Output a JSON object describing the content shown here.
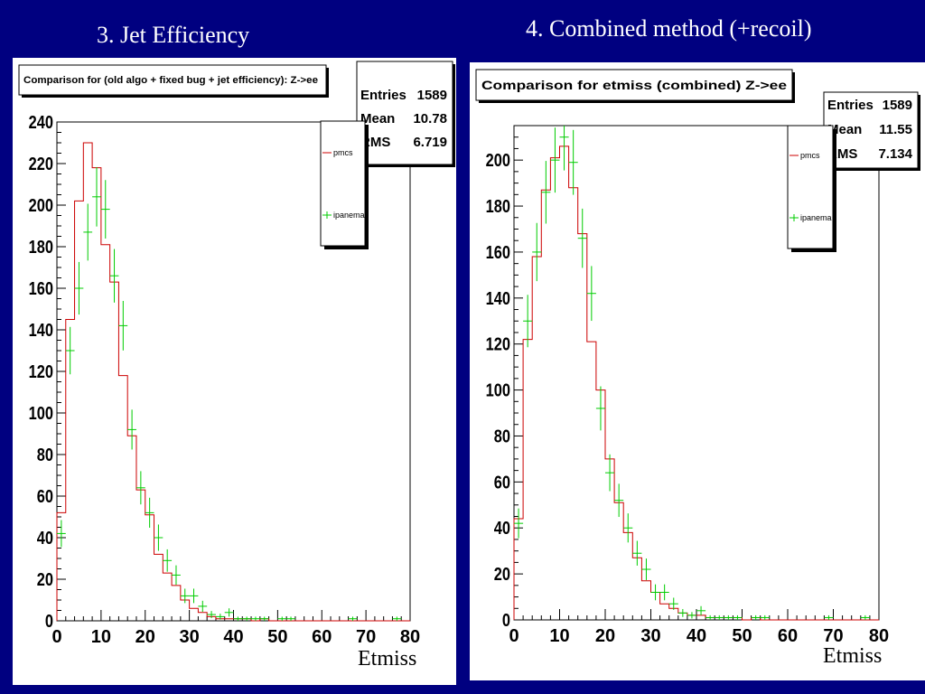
{
  "slide_titles": {
    "left": "3. Jet Efficiency",
    "right": "4. Combined method (+recoil)"
  },
  "colors": {
    "background": "#000080",
    "pmcs": "#cc0000",
    "ipanema": "#00cc00"
  },
  "chart_data": [
    {
      "type": "histogram",
      "title": "Comparison for (old algo + fixed bug + jet efficiency): Z->ee",
      "xlabel": "Etmiss",
      "ylabel": "",
      "xlim": [
        0,
        80
      ],
      "ylim": [
        0,
        240
      ],
      "xticks": [
        0,
        10,
        20,
        30,
        40,
        50,
        60,
        70,
        80
      ],
      "yticks": [
        0,
        20,
        40,
        60,
        80,
        100,
        120,
        140,
        160,
        180,
        200,
        220,
        240
      ],
      "bin_width": 2,
      "stats": {
        "entries_label": "Entries",
        "entries": "1589",
        "mean_label": "Mean",
        "mean": "10.78",
        "rms_label": "RMS",
        "rms": "6.719"
      },
      "legend": {
        "position": "top-right",
        "entries": [
          "pmcs",
          "ipanema"
        ]
      },
      "series": [
        {
          "name": "pmcs",
          "style": "step",
          "values": [
            52,
            145,
            202,
            230,
            218,
            181,
            163,
            118,
            89,
            63,
            51,
            32,
            23,
            17,
            10,
            6,
            4,
            2,
            1,
            1,
            1,
            1,
            0,
            1,
            0,
            0,
            0,
            0,
            0,
            0,
            0,
            0,
            0,
            0,
            0,
            0,
            0,
            0,
            0,
            0
          ]
        },
        {
          "name": "ipanema",
          "style": "errorbars",
          "values": [
            42,
            130,
            160,
            187,
            204,
            198,
            166,
            142,
            92,
            64,
            52,
            40,
            29,
            22,
            12,
            12,
            7,
            3,
            2,
            4,
            1,
            1,
            1,
            1,
            0,
            1,
            1,
            0,
            0,
            0,
            0,
            0,
            0,
            1,
            0,
            0,
            0,
            0,
            1,
            0
          ]
        }
      ]
    },
    {
      "type": "histogram",
      "title": "Comparison for etmiss (combined) Z->ee",
      "xlabel": "Etmiss",
      "ylabel": "",
      "xlim": [
        0,
        80
      ],
      "ylim": [
        0,
        215
      ],
      "xticks": [
        0,
        10,
        20,
        30,
        40,
        50,
        60,
        70,
        80
      ],
      "yticks": [
        0,
        20,
        40,
        60,
        80,
        100,
        120,
        140,
        160,
        180,
        200
      ],
      "bin_width": 2,
      "stats": {
        "entries_label": "Entries",
        "entries": "1589",
        "mean_label": "Mean",
        "mean": "11.55",
        "rms_label": "RMS",
        "rms": "7.134"
      },
      "legend": {
        "position": "top-right",
        "entries": [
          "pmcs",
          "ipanema"
        ]
      },
      "series": [
        {
          "name": "pmcs",
          "style": "step",
          "values": [
            44,
            122,
            158,
            187,
            201,
            206,
            188,
            168,
            121,
            100,
            70,
            51,
            38,
            27,
            17,
            12,
            7,
            5,
            3,
            2,
            2,
            1,
            1,
            1,
            1,
            0,
            1,
            0,
            0,
            0,
            0,
            0,
            0,
            0,
            0,
            0,
            0,
            0,
            0,
            0
          ]
        },
        {
          "name": "ipanema",
          "style": "errorbars",
          "values": [
            42,
            130,
            160,
            186,
            200,
            210,
            199,
            166,
            142,
            92,
            64,
            52,
            40,
            29,
            22,
            12,
            12,
            7,
            3,
            2,
            4,
            1,
            1,
            1,
            1,
            0,
            1,
            1,
            0,
            0,
            0,
            0,
            0,
            0,
            1,
            0,
            0,
            0,
            1,
            0
          ]
        }
      ]
    }
  ]
}
